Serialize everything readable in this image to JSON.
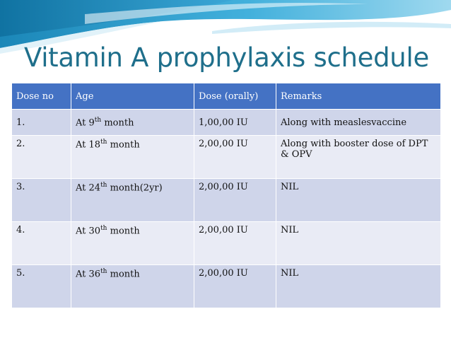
{
  "slide": {
    "title": "Vitamin A prophylaxis schedule"
  },
  "table": {
    "headers": [
      "Dose no",
      "Age",
      "Dose (orally)",
      "Remarks"
    ],
    "rows": [
      {
        "dose_no": "1.",
        "age_prefix": "At 9",
        "age_sup": "th",
        "age_suffix": " month",
        "dose": "1,00,00 IU",
        "remarks": "Along with measlesvaccine"
      },
      {
        "dose_no": "2.",
        "age_prefix": "At 18",
        "age_sup": "th",
        "age_suffix": " month",
        "dose": "2,00,00 IU",
        "remarks": "Along with booster dose of DPT & OPV"
      },
      {
        "dose_no": "3.",
        "age_prefix": "At 24",
        "age_sup": "th",
        "age_suffix": " month(2yr)",
        "dose": "2,00,00 IU",
        "remarks": "NIL"
      },
      {
        "dose_no": "4.",
        "age_prefix": "At 30",
        "age_sup": "th",
        "age_suffix": " month",
        "dose": "2,00,00 IU",
        "remarks": "NIL"
      },
      {
        "dose_no": "5.",
        "age_prefix": "At 36",
        "age_sup": "th",
        "age_suffix": " month",
        "dose": "2,00,00 IU",
        "remarks": "NIL"
      }
    ]
  },
  "colors": {
    "header_bg": "#4472c4",
    "row_odd": "#cfd5ea",
    "row_even": "#e9ebf5",
    "title": "#1f6f8b",
    "wave_dark": "#1b87b8",
    "wave_light": "#8fd0ea"
  }
}
